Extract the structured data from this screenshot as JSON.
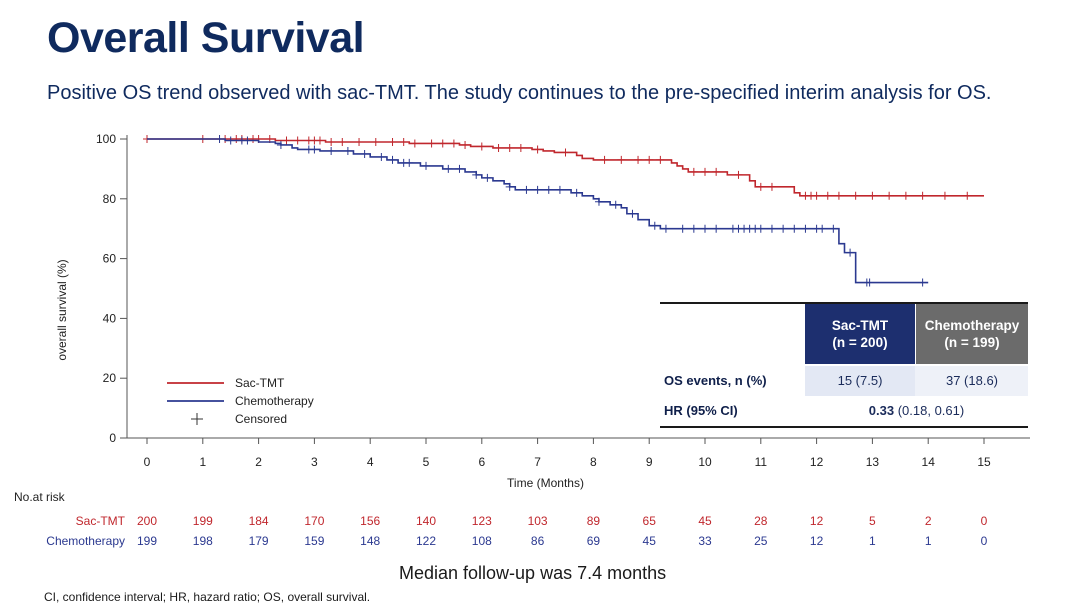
{
  "slide": {
    "title": "Overall Survival",
    "subtitle": "Positive OS trend observed with sac-TMT. The study continues to the pre-specified interim analysis for OS.",
    "median_followup": "Median follow-up was 7.4 months",
    "footnote": "CI, confidence interval; HR, hazard ratio; OS, overall survival."
  },
  "colors": {
    "sac_tmt": "#c0272d",
    "chemo": "#2b3990",
    "title": "#0f2a5e",
    "sac_header": "#1d2f6f",
    "chemo_header": "#6b6b6b"
  },
  "chart_data": {
    "type": "line",
    "subtype": "kaplan-meier",
    "xlabel": "Time (Months)",
    "ylabel": "overall survival (%)",
    "xlim": [
      0,
      15
    ],
    "ylim": [
      0,
      100
    ],
    "x_ticks": [
      0,
      1,
      2,
      3,
      4,
      5,
      6,
      7,
      8,
      9,
      10,
      11,
      12,
      13,
      14,
      15
    ],
    "y_ticks": [
      0,
      20,
      40,
      60,
      80,
      100
    ],
    "legend": {
      "position": "bottom-left",
      "entries": [
        "Sac-TMT",
        "Chemotherapy",
        "Censored"
      ]
    },
    "series": [
      {
        "name": "Sac-TMT",
        "steps": [
          [
            0,
            100
          ],
          [
            2.3,
            99.5
          ],
          [
            3.2,
            99
          ],
          [
            4.7,
            98.5
          ],
          [
            5.6,
            98
          ],
          [
            5.8,
            97.5
          ],
          [
            6.2,
            97
          ],
          [
            6.9,
            96.5
          ],
          [
            7.1,
            96
          ],
          [
            7.3,
            95.5
          ],
          [
            7.7,
            94.5
          ],
          [
            7.8,
            93.5
          ],
          [
            8.0,
            93
          ],
          [
            9.4,
            92
          ],
          [
            9.5,
            91
          ],
          [
            9.6,
            90
          ],
          [
            9.7,
            89
          ],
          [
            10.4,
            88
          ],
          [
            10.8,
            86
          ],
          [
            10.9,
            84
          ],
          [
            11.6,
            82
          ],
          [
            11.7,
            81
          ],
          [
            15.0,
            81
          ]
        ],
        "censored": [
          0,
          1,
          1.4,
          1.6,
          1.7,
          1.9,
          2.0,
          2.2,
          2.5,
          2.7,
          2.9,
          3.0,
          3.1,
          3.3,
          3.5,
          3.8,
          4.1,
          4.4,
          4.6,
          4.8,
          5.1,
          5.3,
          5.5,
          5.7,
          6.0,
          6.3,
          6.5,
          6.7,
          7.0,
          7.5,
          8.2,
          8.5,
          8.8,
          9.0,
          9.2,
          9.8,
          10.0,
          10.2,
          10.6,
          11.0,
          11.2,
          11.8,
          11.9,
          12.0,
          12.2,
          12.4,
          12.7,
          13.0,
          13.3,
          13.6,
          13.9,
          14.3,
          14.7
        ]
      },
      {
        "name": "Chemotherapy",
        "steps": [
          [
            0,
            100
          ],
          [
            1.4,
            99.5
          ],
          [
            2.0,
            99
          ],
          [
            2.3,
            98.5
          ],
          [
            2.4,
            98
          ],
          [
            2.6,
            97
          ],
          [
            2.7,
            96.5
          ],
          [
            3.1,
            96
          ],
          [
            3.7,
            95
          ],
          [
            4.0,
            94
          ],
          [
            4.3,
            93
          ],
          [
            4.5,
            92
          ],
          [
            4.9,
            91
          ],
          [
            5.3,
            90
          ],
          [
            5.7,
            89
          ],
          [
            5.9,
            88
          ],
          [
            6.0,
            87
          ],
          [
            6.2,
            86
          ],
          [
            6.4,
            85
          ],
          [
            6.5,
            84
          ],
          [
            6.6,
            83
          ],
          [
            7.6,
            82
          ],
          [
            7.8,
            81
          ],
          [
            8.0,
            80
          ],
          [
            8.1,
            79
          ],
          [
            8.3,
            78
          ],
          [
            8.5,
            77
          ],
          [
            8.6,
            75
          ],
          [
            8.8,
            73
          ],
          [
            9.0,
            71
          ],
          [
            9.2,
            70
          ],
          [
            9.5,
            70
          ],
          [
            12.4,
            65
          ],
          [
            12.5,
            62
          ],
          [
            12.7,
            52
          ],
          [
            14.0,
            52
          ]
        ],
        "censored": [
          1.3,
          1.5,
          1.7,
          1.8,
          2.4,
          2.9,
          3.0,
          3.3,
          3.6,
          3.9,
          4.2,
          4.4,
          4.6,
          4.7,
          5.0,
          5.4,
          5.6,
          5.9,
          6.1,
          6.5,
          6.8,
          7.0,
          7.2,
          7.4,
          7.7,
          8.1,
          8.4,
          8.7,
          9.1,
          9.3,
          9.6,
          9.8,
          10.0,
          10.2,
          10.5,
          10.6,
          10.7,
          10.8,
          10.9,
          11.0,
          11.2,
          11.4,
          11.6,
          11.8,
          12.0,
          12.1,
          12.3,
          12.6,
          12.9,
          12.95,
          13.9
        ]
      }
    ],
    "risk_table": {
      "title": "No.at risk",
      "times": [
        0,
        1,
        2,
        3,
        4,
        5,
        6,
        7,
        8,
        9,
        10,
        11,
        12,
        13,
        14,
        15
      ],
      "rows": [
        {
          "name": "Sac-TMT",
          "values": [
            200,
            199,
            184,
            170,
            156,
            140,
            123,
            103,
            89,
            65,
            45,
            28,
            12,
            5,
            2,
            0
          ]
        },
        {
          "name": "Chemotherapy",
          "values": [
            199,
            198,
            179,
            159,
            148,
            122,
            108,
            86,
            69,
            45,
            33,
            25,
            12,
            1,
            1,
            0
          ]
        }
      ]
    }
  },
  "summary_table": {
    "header_sac": "Sac-TMT",
    "header_sac_n": "(n = 200)",
    "header_chemo": "Chemotherapy",
    "header_chemo_n": "(n = 199)",
    "row1_label": "OS events, n (%)",
    "row1_sac": "15 (7.5)",
    "row1_chemo": "37 (18.6)",
    "row2_label": "HR (95% CI)",
    "row2_hr": "0.33",
    "row2_ci": "(0.18, 0.61)"
  }
}
